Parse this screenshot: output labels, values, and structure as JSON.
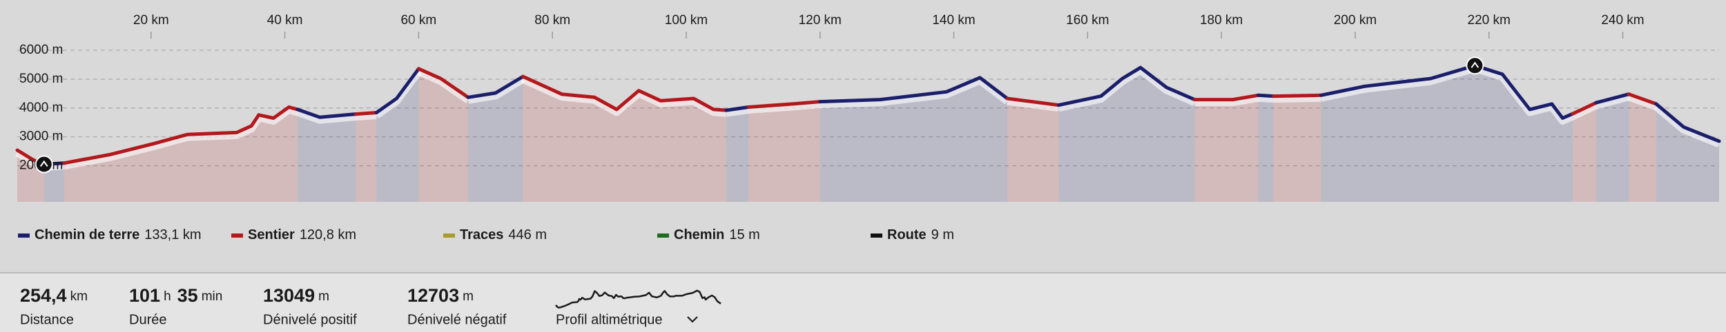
{
  "chart_data": {
    "type": "area",
    "xlim": [
      0,
      254.4
    ],
    "xticks": [
      {
        "value": 20,
        "label": "20 km"
      },
      {
        "value": 40,
        "label": "40 km"
      },
      {
        "value": 60,
        "label": "60 km"
      },
      {
        "value": 80,
        "label": "80 km"
      },
      {
        "value": 100,
        "label": "100 km"
      },
      {
        "value": 120,
        "label": "120 km"
      },
      {
        "value": 140,
        "label": "140 km"
      },
      {
        "value": 160,
        "label": "160 km"
      },
      {
        "value": 180,
        "label": "180 km"
      },
      {
        "value": 200,
        "label": "200 km"
      },
      {
        "value": 220,
        "label": "220 km"
      },
      {
        "value": 240,
        "label": "240 km"
      }
    ],
    "ylim": [
      750,
      6500
    ],
    "yticks": [
      {
        "value": 2000,
        "label": "2000 m"
      },
      {
        "value": 3000,
        "label": "3000 m"
      },
      {
        "value": 4000,
        "label": "4000 m"
      },
      {
        "value": 5000,
        "label": "5000 m"
      },
      {
        "value": 6000,
        "label": "6000 m"
      }
    ],
    "grid": true,
    "series": [
      {
        "name": "Chemin de terre",
        "total": "133,1 km",
        "color": "#1b1f6b"
      },
      {
        "name": "Sentier",
        "total": "120,8 km",
        "color": "#b3181c"
      },
      {
        "name": "Traces",
        "total": "446 m",
        "color": "#a89c2c"
      },
      {
        "name": "Chemin",
        "total": "15 m",
        "color": "#1e6a1e"
      },
      {
        "name": "Route",
        "total": "9 m",
        "color": "#111111"
      }
    ],
    "x": [
      0,
      2.4,
      4,
      7,
      13.9,
      20.5,
      25.4,
      32.8,
      35,
      36.1,
      38.3,
      40.6,
      41.9,
      45.2,
      50.6,
      53.7,
      56.7,
      60,
      63.3,
      67.4,
      71.5,
      75.6,
      81.4,
      86.3,
      89.6,
      92.9,
      96.2,
      101.1,
      104.1,
      106,
      109.3,
      115.9,
      120,
      129,
      138.9,
      143.9,
      148,
      155.7,
      162,
      165.2,
      167.9,
      171.8,
      176,
      181.7,
      185.5,
      187.8,
      194.9,
      201.4,
      211.3,
      217.9,
      222,
      226.1,
      229.4,
      231,
      232.5,
      236,
      240.9,
      245,
      249.1,
      254.4
    ],
    "values": [
      2540,
      2200,
      2050,
      2090,
      2390,
      2770,
      3080,
      3150,
      3380,
      3760,
      3650,
      4030,
      3950,
      3680,
      3790,
      3840,
      4330,
      5360,
      5020,
      4370,
      4520,
      5090,
      4480,
      4370,
      3950,
      4600,
      4250,
      4330,
      3950,
      3920,
      4030,
      4140,
      4220,
      4290,
      4560,
      5050,
      4330,
      4100,
      4410,
      5020,
      5400,
      4710,
      4290,
      4290,
      4440,
      4410,
      4440,
      4750,
      5020,
      5470,
      5170,
      3950,
      4140,
      3650,
      3800,
      4180,
      4480,
      4140,
      3340,
      2850
    ],
    "surface": [
      1,
      1,
      0,
      1,
      1,
      1,
      1,
      1,
      1,
      1,
      1,
      1,
      0,
      0,
      1,
      0,
      0,
      1,
      1,
      0,
      0,
      1,
      1,
      1,
      1,
      1,
      1,
      1,
      1,
      0,
      1,
      1,
      0,
      0,
      0,
      0,
      1,
      0,
      0,
      0,
      0,
      0,
      1,
      1,
      0,
      1,
      0,
      0,
      0,
      0,
      0,
      0,
      0,
      0,
      1,
      0,
      1,
      0,
      0,
      0
    ]
  },
  "summary": [
    {
      "parts": [
        {
          "value": "254,4",
          "unit": "km"
        }
      ],
      "label": "Distance"
    },
    {
      "parts": [
        {
          "value": "101",
          "unit": "h"
        },
        {
          "value": "35",
          "unit": "min"
        }
      ],
      "label": "Durée"
    },
    {
      "parts": [
        {
          "value": "13049",
          "unit": "m"
        }
      ],
      "label": "Dénivelé positif"
    },
    {
      "parts": [
        {
          "value": "12703",
          "unit": "m"
        }
      ],
      "label": "Dénivelé négatif"
    }
  ],
  "profile_button": "Profil altimétrique"
}
